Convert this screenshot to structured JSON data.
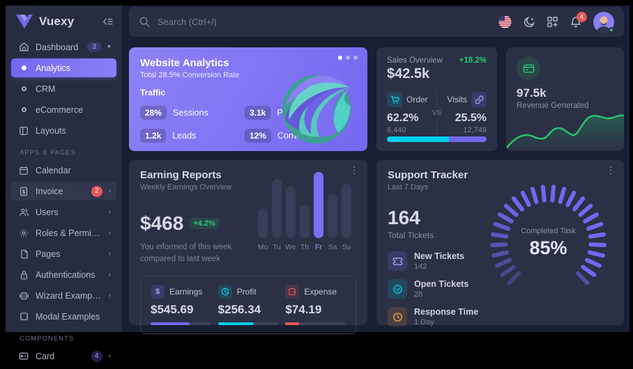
{
  "colors": {
    "primary": "#7367f0",
    "success": "#28c76f",
    "danger": "#ea5455",
    "warning": "#ff9f43",
    "info": "#00cfe8"
  },
  "sidebar": {
    "brand": "Vuexy",
    "items": [
      {
        "label": "Dashboard",
        "badge": "3"
      },
      {
        "label": "Analytics"
      },
      {
        "label": "CRM"
      },
      {
        "label": "eCommerce"
      },
      {
        "label": "Layouts"
      },
      {
        "label": "Calendar"
      },
      {
        "label": "Invoice",
        "badge": "2"
      },
      {
        "label": "Users"
      },
      {
        "label": "Roles & Permissions"
      },
      {
        "label": "Pages"
      },
      {
        "label": "Authentications"
      },
      {
        "label": "Wizard Examples"
      },
      {
        "label": "Modal Examples"
      },
      {
        "label": "Card",
        "badge": "4"
      }
    ],
    "section_headers": {
      "apps": "APPS & PAGES",
      "components": "COMPONENTS"
    }
  },
  "topbar": {
    "search_placeholder": "Search (Ctrl+/)",
    "notification_count": "4"
  },
  "website_analytics": {
    "title": "Website Analytics",
    "subtitle": "Total 28.5% Conversion Rate",
    "section": "Traffic",
    "stats": [
      {
        "value": "28%",
        "label": "Sessions"
      },
      {
        "value": "3.1k",
        "label": "Page Views"
      },
      {
        "value": "1.2k",
        "label": "Leads"
      },
      {
        "value": "12%",
        "label": "Conversions"
      }
    ]
  },
  "sales_overview": {
    "title": "Sales Overview",
    "change": "+18.2%",
    "total": "$42.5k",
    "vs": "VS",
    "order": {
      "label": "Order",
      "pct": "62.2%",
      "count": "6,440"
    },
    "visits": {
      "label": "Visits",
      "pct": "25.5%",
      "count": "12,749"
    },
    "progress_pct": 62
  },
  "revenue_card": {
    "value": "97.5k",
    "label": "Revenue Generated"
  },
  "earning_reports": {
    "title": "Earning Reports",
    "subtitle": "Weekly Earnings Overview",
    "amount": "$468",
    "change": "+4.2%",
    "note": "You informed of this week compared to last week",
    "stats": [
      {
        "label": "Earnings",
        "value": "$545.69",
        "pct": 65,
        "color": "#7367f0"
      },
      {
        "label": "Profit",
        "value": "$256.34",
        "pct": 60,
        "color": "#00cfe8"
      },
      {
        "label": "Expense",
        "value": "$74.19",
        "pct": 23,
        "color": "#ea5455"
      }
    ]
  },
  "support_tracker": {
    "title": "Support Tracker",
    "subtitle": "Last 7 Days",
    "total": "164",
    "total_label": "Total Tickets",
    "rows": [
      {
        "label": "New Tickets",
        "value": "142"
      },
      {
        "label": "Open Tickets",
        "value": "28"
      },
      {
        "label": "Response Time",
        "value": "1 Day"
      }
    ],
    "gauge_label": "Completed Task",
    "gauge_value": "85%",
    "gauge_pct": 85
  },
  "chart_data": [
    {
      "type": "bar",
      "title": "Weekly Earnings Overview",
      "categories": [
        "Mo",
        "Tu",
        "We",
        "Th",
        "Fr",
        "Sa",
        "Su"
      ],
      "values": [
        38,
        75,
        65,
        42,
        100,
        55,
        68
      ],
      "value_unit": "percent of max (no axis labels shown)",
      "highlight_index": 4,
      "bar_color": "#383d5a",
      "highlight_color": "#7b6ff6",
      "grid": false,
      "legend": false
    },
    {
      "type": "area",
      "title": "Revenue Generated trend",
      "x": [
        0,
        10,
        20,
        30,
        40,
        50,
        60,
        70,
        80,
        90,
        100
      ],
      "y": [
        5,
        22,
        30,
        26,
        42,
        30,
        24,
        50,
        72,
        62,
        66
      ],
      "value_unit": "percent of chart height (unlabeled sparkline)",
      "line_color": "#28c76f",
      "grid": false,
      "legend": false
    },
    {
      "type": "pie",
      "title": "Support Tracker - Completed Task",
      "categories": [
        "Completed",
        "Remaining"
      ],
      "values": [
        85,
        15
      ],
      "annotation": "85% Completed Task",
      "style": "radial tick gauge, color #7367f0, gap at bottom"
    }
  ]
}
